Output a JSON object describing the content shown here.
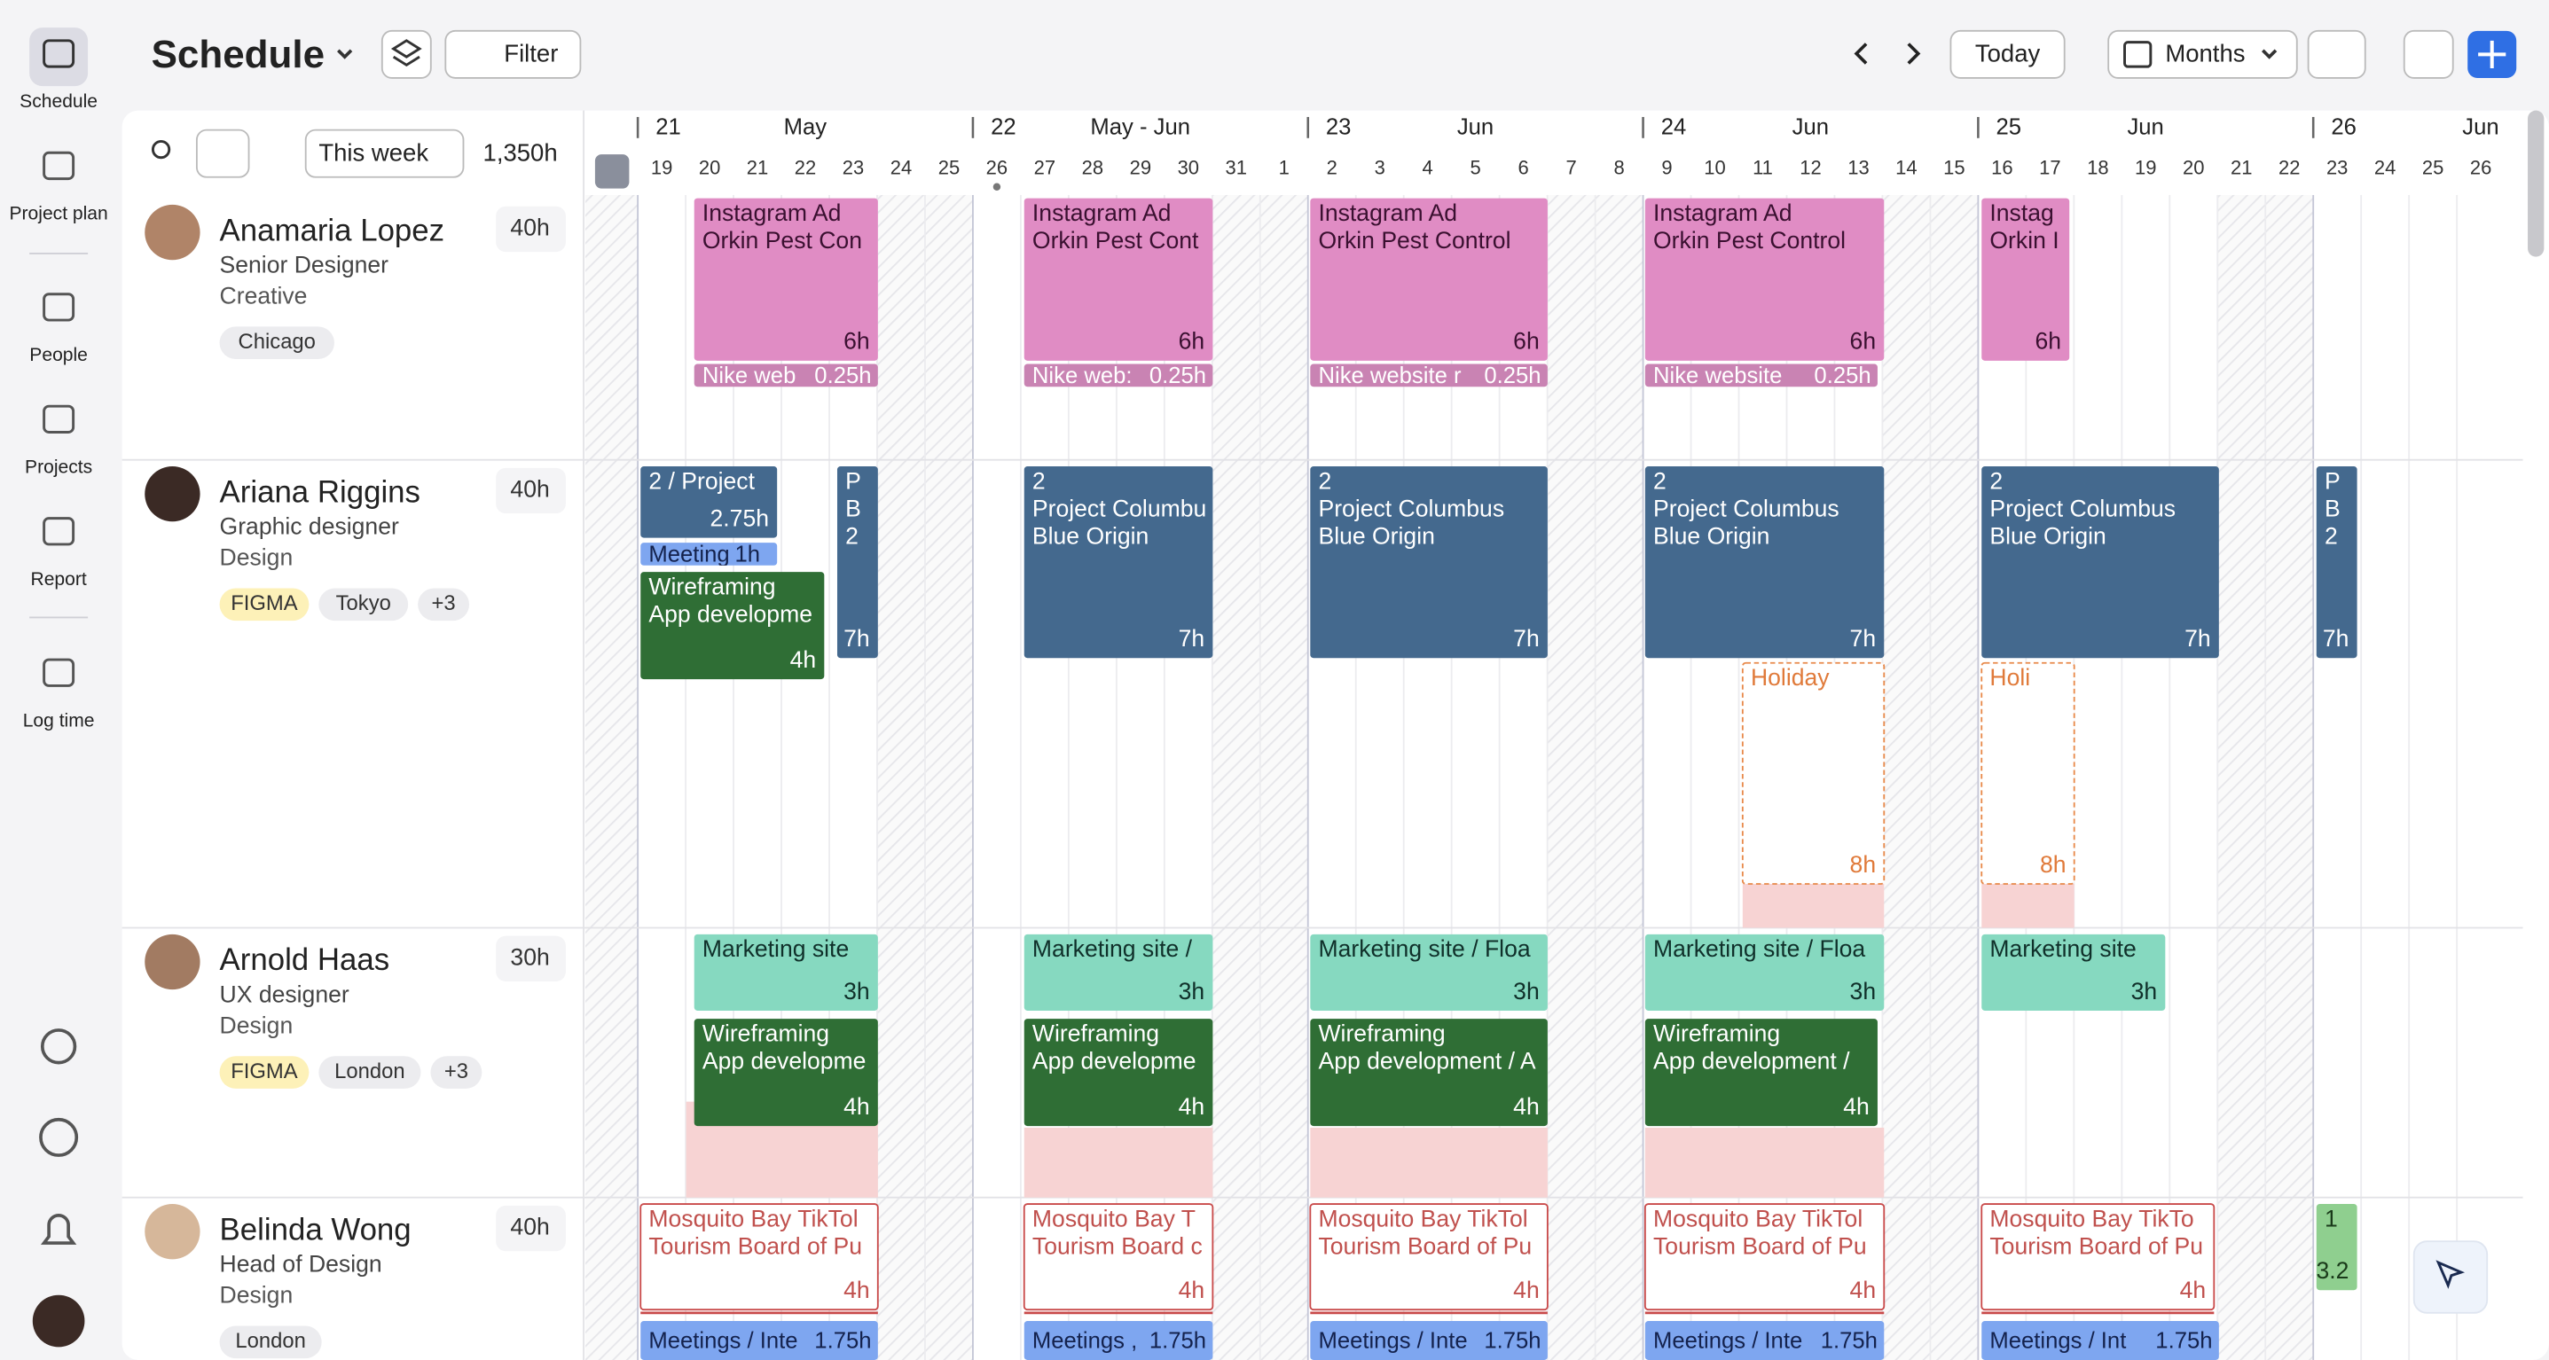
{
  "sidebar": {
    "items": [
      "Schedule",
      "Project plan",
      "People",
      "Projects",
      "Report",
      "Log time"
    ]
  },
  "header": {
    "title": "Schedule",
    "filter": "Filter",
    "today": "Today",
    "view": "Months"
  },
  "toolbar": {
    "range": "This week",
    "total": "1,350h"
  },
  "timeline": {
    "weeks": [
      {
        "number": "21",
        "month": "May"
      },
      {
        "number": "22",
        "month": "May - Jun"
      },
      {
        "number": "23",
        "month": "Jun"
      },
      {
        "number": "24",
        "month": "Jun"
      },
      {
        "number": "25",
        "month": "Jun"
      },
      {
        "number": "26",
        "month": "Jun"
      }
    ],
    "days": [
      19,
      20,
      21,
      22,
      23,
      24,
      25,
      26,
      27,
      28,
      29,
      30,
      31,
      1,
      2,
      3,
      4,
      5,
      6,
      7,
      8,
      9,
      10,
      11,
      12,
      13,
      14,
      15,
      16,
      17,
      18,
      19,
      20,
      21,
      22,
      23,
      24,
      25,
      26
    ]
  },
  "people": [
    {
      "name": "Anamaria Lopez",
      "role": "Senior Designer",
      "department": "Creative",
      "hours": "40h",
      "tags": [
        "Chicago"
      ],
      "tasks": [
        {
          "lines": [
            "Instagram Ad",
            "Orkin Pest Con"
          ],
          "hours": "6h"
        },
        {
          "lines": [
            "Instagram Ad",
            "Orkin Pest Cont"
          ],
          "hours": "6h"
        },
        {
          "lines": [
            "Instagram Ad",
            "Orkin Pest Control"
          ],
          "hours": "6h"
        },
        {
          "lines": [
            "Instagram Ad",
            "Orkin Pest Control"
          ],
          "hours": "6h"
        },
        {
          "lines": [
            "Instag",
            "Orkin I"
          ],
          "hours": "6h"
        },
        {
          "lines": [
            "Nike web"
          ],
          "hours": "0.25h"
        },
        {
          "lines": [
            "Nike web:"
          ],
          "hours": "0.25h"
        },
        {
          "lines": [
            "Nike website r"
          ],
          "hours": "0.25h"
        },
        {
          "lines": [
            "Nike website"
          ],
          "hours": "0.25h"
        }
      ]
    },
    {
      "name": "Ariana Riggins",
      "role": "Graphic designer",
      "department": "Design",
      "hours": "40h",
      "tags": [
        "FIGMA",
        "Tokyo",
        "+3"
      ],
      "tasks": [
        {
          "lines": [
            "2 / Project"
          ],
          "hours": "2.75h"
        },
        {
          "lines": [
            "Meeting"
          ],
          "hours": "1h"
        },
        {
          "lines": [
            "Wireframing",
            "App developme"
          ],
          "hours": "4h"
        },
        {
          "lines": [
            "P",
            "B",
            "2"
          ],
          "hours": "7h"
        },
        {
          "lines": [
            "2",
            "Project Columbu",
            "Blue Origin"
          ],
          "hours": "7h"
        },
        {
          "lines": [
            "2",
            "Project Columbus",
            "Blue Origin"
          ],
          "hours": "7h"
        },
        {
          "lines": [
            "2",
            "Project Columbus",
            "Blue Origin"
          ],
          "hours": "7h"
        },
        {
          "lines": [
            "2",
            "Project Columbus",
            "Blue Origin"
          ],
          "hours": "7h"
        },
        {
          "lines": [
            "P",
            "B",
            "2"
          ],
          "hours": "7h"
        },
        {
          "lines": [
            "Holiday"
          ],
          "hours": "8h"
        },
        {
          "lines": [
            "Holi"
          ],
          "hours": "8h"
        }
      ]
    },
    {
      "name": "Arnold Haas",
      "role": "UX designer",
      "department": "Design",
      "hours": "30h",
      "tags": [
        "FIGMA",
        "London",
        "+3"
      ],
      "tasks": [
        {
          "lines": [
            "Marketing site"
          ],
          "hours": "3h"
        },
        {
          "lines": [
            "Marketing site /"
          ],
          "hours": "3h"
        },
        {
          "lines": [
            "Marketing site / Floa"
          ],
          "hours": "3h"
        },
        {
          "lines": [
            "Marketing site / Floa"
          ],
          "hours": "3h"
        },
        {
          "lines": [
            "Marketing site"
          ],
          "hours": "3h"
        },
        {
          "lines": [
            "Wireframing",
            "App developme"
          ],
          "hours": "4h"
        },
        {
          "lines": [
            "Wireframing",
            "App developme"
          ],
          "hours": "4h"
        },
        {
          "lines": [
            "Wireframing",
            "App development / A"
          ],
          "hours": "4h"
        },
        {
          "lines": [
            "Wireframing",
            "App development /"
          ],
          "hours": "4h"
        }
      ]
    },
    {
      "name": "Belinda Wong",
      "role": "Head of Design",
      "department": "Design",
      "hours": "40h",
      "tags": [
        "London"
      ],
      "tasks": [
        {
          "lines": [
            "Mosquito Bay TikTol",
            "Tourism Board of Pu"
          ],
          "hours": "4h"
        },
        {
          "lines": [
            "Mosquito Bay T",
            "Tourism Board c"
          ],
          "hours": "4h"
        },
        {
          "lines": [
            "Mosquito Bay TikTol",
            "Tourism Board of Pu"
          ],
          "hours": "4h"
        },
        {
          "lines": [
            "Mosquito Bay TikTol",
            "Tourism Board of Pu"
          ],
          "hours": "4h"
        },
        {
          "lines": [
            "Mosquito Bay TikTo",
            "Tourism Board of Pu"
          ],
          "hours": "4h"
        },
        {
          "lines": [
            "1"
          ],
          "hours": "3.2"
        },
        {
          "lines": [
            "Meetings / Inte"
          ],
          "hours": "1.75h"
        },
        {
          "lines": [
            "Meetings ,"
          ],
          "hours": "1.75h"
        },
        {
          "lines": [
            "Meetings / Inte"
          ],
          "hours": "1.75h"
        },
        {
          "lines": [
            "Meetings / Inte"
          ],
          "hours": "1.75h"
        },
        {
          "lines": [
            "Meetings / Int"
          ],
          "hours": "1.75h"
        }
      ]
    }
  ]
}
